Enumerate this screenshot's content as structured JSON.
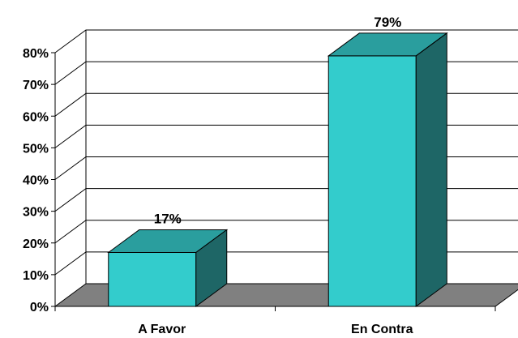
{
  "chart_data": {
    "type": "bar",
    "three_d": true,
    "categories": [
      "A Favor",
      "En Contra"
    ],
    "values": [
      17,
      79
    ],
    "data_labels": [
      "17%",
      "79%"
    ],
    "y_ticks": [
      0,
      10,
      20,
      30,
      40,
      50,
      60,
      70,
      80
    ],
    "y_tick_labels": [
      "0%",
      "10%",
      "20%",
      "30%",
      "40%",
      "50%",
      "60%",
      "70%",
      "80%"
    ],
    "ylim": [
      0,
      80
    ],
    "grid": true,
    "colors": {
      "bar_front": "#33CCCC",
      "bar_top": "#2A9E9E",
      "bar_side": "#1E6666",
      "floor": "#808080",
      "wall": "#ffffff",
      "grid": "#000000"
    }
  }
}
